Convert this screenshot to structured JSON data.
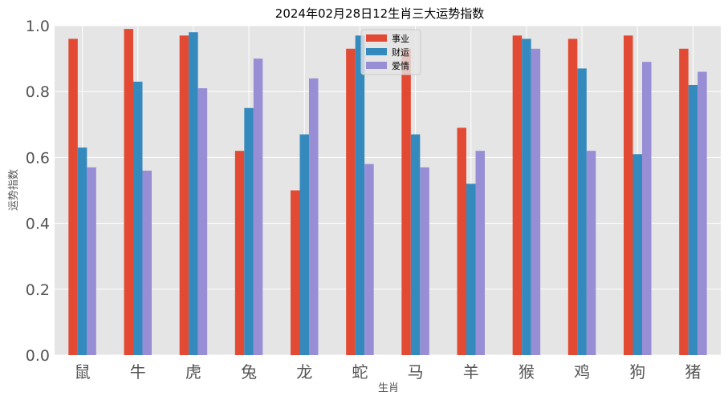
{
  "chart_data": {
    "type": "bar",
    "title": "2024年02月28日12生肖三大运势指数",
    "xlabel": "生肖",
    "ylabel": "运势指数",
    "categories": [
      "鼠",
      "牛",
      "虎",
      "兔",
      "龙",
      "蛇",
      "马",
      "羊",
      "猴",
      "鸡",
      "狗",
      "猪"
    ],
    "series": [
      {
        "name": "事业",
        "color": "#e24a33",
        "values": [
          0.96,
          0.99,
          0.97,
          0.62,
          0.5,
          0.93,
          0.93,
          0.69,
          0.97,
          0.96,
          0.97,
          0.93
        ]
      },
      {
        "name": "财运",
        "color": "#348abd",
        "values": [
          0.63,
          0.83,
          0.98,
          0.75,
          0.67,
          0.97,
          0.67,
          0.52,
          0.96,
          0.87,
          0.61,
          0.82
        ]
      },
      {
        "name": "爱情",
        "color": "#988ed5",
        "values": [
          0.57,
          0.56,
          0.81,
          0.9,
          0.84,
          0.58,
          0.57,
          0.62,
          0.93,
          0.62,
          0.89,
          0.86
        ]
      }
    ],
    "ylim": [
      0,
      1.0
    ],
    "yticks": [
      "0.0",
      "0.2",
      "0.4",
      "0.6",
      "0.8",
      "1.0"
    ],
    "grid": true,
    "legend_position": "top-center",
    "plot_background": "#e5e5e5"
  }
}
